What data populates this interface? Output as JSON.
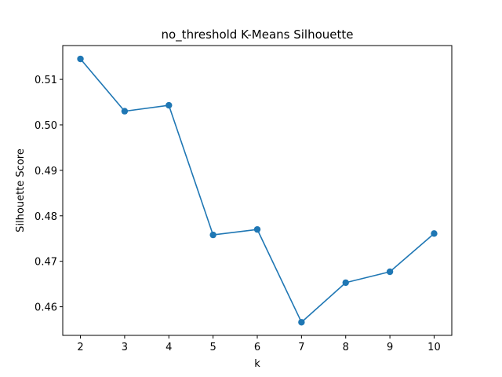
{
  "chart_data": {
    "type": "line",
    "title": "no_threshold K-Means Silhouette",
    "xlabel": "k",
    "ylabel": "Silhouette Score",
    "x": [
      2,
      3,
      4,
      5,
      6,
      7,
      8,
      9,
      10
    ],
    "series": [
      {
        "values": [
          0.5145,
          0.503,
          0.5043,
          0.4758,
          0.477,
          0.4566,
          0.4653,
          0.4677,
          0.4761
        ],
        "color": "#1f77b4"
      }
    ],
    "x_ticks": [
      "2",
      "3",
      "4",
      "5",
      "6",
      "7",
      "8",
      "9",
      "10"
    ],
    "y_ticks": [
      "0.46",
      "0.47",
      "0.48",
      "0.49",
      "0.50",
      "0.51"
    ],
    "xlim": [
      1.6,
      10.4
    ],
    "ylim": [
      0.45371,
      0.51744
    ],
    "grid": false,
    "marker": "circle"
  }
}
